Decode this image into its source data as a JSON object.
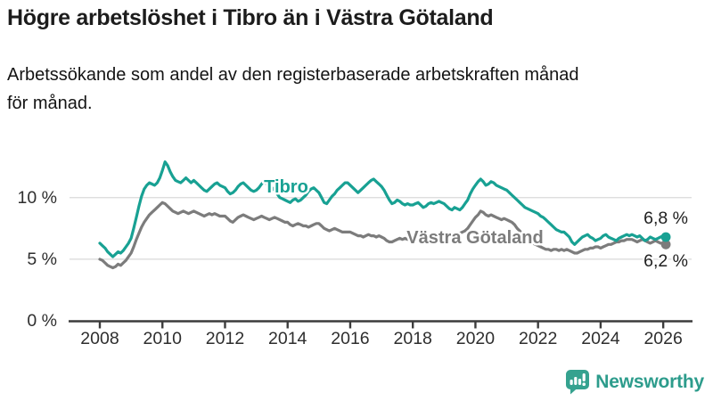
{
  "header": {
    "title": "Högre arbetslöshet i Tibro än i Västra Götaland",
    "subtitle_line1": "Arbetssökande som andel av den registerbaserade arbetskraften månad",
    "subtitle_line2": "för månad."
  },
  "chart_data": {
    "type": "line",
    "unit": "% av registerbaserad arbetskraft",
    "frequency": "monthly",
    "period_start": "2008-01",
    "period_end": "2026-02",
    "grid": "horizontal",
    "y_axis": {
      "ticks": [
        0,
        5,
        10
      ],
      "tick_labels": [
        "0 %",
        "5 %",
        "10 %"
      ],
      "ylim": [
        0,
        13.5
      ]
    },
    "x_axis": {
      "tick_years": [
        2008,
        2010,
        2012,
        2014,
        2016,
        2018,
        2020,
        2022,
        2024,
        2026
      ],
      "xlim_years": [
        2007.0,
        2026.9
      ]
    },
    "series": [
      {
        "name": "Västra Götaland",
        "color": "#7c7c7c",
        "end_label": "6,2 %",
        "last_value": 6.2,
        "values": [
          5.0,
          4.9,
          4.7,
          4.5,
          4.4,
          4.3,
          4.4,
          4.6,
          4.5,
          4.7,
          4.9,
          5.2,
          5.5,
          6.0,
          6.6,
          7.1,
          7.6,
          8.0,
          8.3,
          8.6,
          8.8,
          9.0,
          9.2,
          9.4,
          9.6,
          9.5,
          9.3,
          9.1,
          8.9,
          8.8,
          8.7,
          8.8,
          8.9,
          8.8,
          8.7,
          8.8,
          8.9,
          8.8,
          8.7,
          8.6,
          8.5,
          8.6,
          8.7,
          8.6,
          8.7,
          8.6,
          8.5,
          8.5,
          8.5,
          8.3,
          8.1,
          8.0,
          8.2,
          8.4,
          8.5,
          8.6,
          8.5,
          8.4,
          8.3,
          8.2,
          8.3,
          8.4,
          8.5,
          8.4,
          8.3,
          8.2,
          8.3,
          8.4,
          8.3,
          8.2,
          8.1,
          8.0,
          8.0,
          7.8,
          7.7,
          7.8,
          7.9,
          7.8,
          7.7,
          7.7,
          7.6,
          7.7,
          7.8,
          7.9,
          7.9,
          7.7,
          7.5,
          7.4,
          7.3,
          7.4,
          7.5,
          7.4,
          7.3,
          7.2,
          7.2,
          7.2,
          7.2,
          7.1,
          7.0,
          6.9,
          6.9,
          6.8,
          6.9,
          7.0,
          6.9,
          6.9,
          6.8,
          6.9,
          6.8,
          6.7,
          6.5,
          6.4,
          6.4,
          6.5,
          6.6,
          6.7,
          6.6,
          6.7,
          6.6,
          6.7,
          6.7,
          6.6,
          6.6,
          6.7,
          6.8,
          6.7,
          6.6,
          6.7,
          6.8,
          6.7,
          6.8,
          6.9,
          6.9,
          6.8,
          6.8,
          6.9,
          7.0,
          7.0,
          7.1,
          7.2,
          7.3,
          7.5,
          7.8,
          8.1,
          8.4,
          8.6,
          8.9,
          8.8,
          8.6,
          8.5,
          8.6,
          8.5,
          8.4,
          8.3,
          8.2,
          8.3,
          8.2,
          8.1,
          8.0,
          7.8,
          7.5,
          7.3,
          7.0,
          6.8,
          6.6,
          6.4,
          6.3,
          6.2,
          6.1,
          6.0,
          5.9,
          5.8,
          5.8,
          5.7,
          5.8,
          5.8,
          5.7,
          5.8,
          5.7,
          5.8,
          5.7,
          5.6,
          5.5,
          5.5,
          5.6,
          5.7,
          5.8,
          5.8,
          5.9,
          5.9,
          6.0,
          6.0,
          5.9,
          6.0,
          6.1,
          6.2,
          6.2,
          6.3,
          6.4,
          6.4,
          6.5,
          6.5,
          6.6,
          6.6,
          6.6,
          6.5,
          6.4,
          6.5,
          6.6,
          6.5,
          6.4,
          6.3,
          6.4,
          6.5,
          6.4,
          6.3,
          6.3,
          6.2
        ]
      },
      {
        "name": "Tibro",
        "color": "#18a193",
        "end_label": "6,8 %",
        "last_value": 6.8,
        "values": [
          6.3,
          6.1,
          5.9,
          5.6,
          5.4,
          5.2,
          5.4,
          5.6,
          5.5,
          5.7,
          6.0,
          6.3,
          6.7,
          7.5,
          8.4,
          9.3,
          10.1,
          10.7,
          11.0,
          11.2,
          11.1,
          11.0,
          11.2,
          11.6,
          12.2,
          12.9,
          12.6,
          12.1,
          11.7,
          11.4,
          11.3,
          11.2,
          11.4,
          11.6,
          11.4,
          11.2,
          11.4,
          11.2,
          11.0,
          10.8,
          10.6,
          10.5,
          10.7,
          10.9,
          11.1,
          11.2,
          11.0,
          10.9,
          10.8,
          10.5,
          10.3,
          10.4,
          10.6,
          10.9,
          11.1,
          11.2,
          11.0,
          10.8,
          10.6,
          10.5,
          10.6,
          10.8,
          11.1,
          11.3,
          11.1,
          10.9,
          10.8,
          10.6,
          10.3,
          10.0,
          9.9,
          9.8,
          9.7,
          9.6,
          9.8,
          9.9,
          9.7,
          9.8,
          10.0,
          10.2,
          10.5,
          10.7,
          10.8,
          10.6,
          10.4,
          10.0,
          9.6,
          9.5,
          9.8,
          10.1,
          10.3,
          10.6,
          10.8,
          11.0,
          11.2,
          11.2,
          11.0,
          10.8,
          10.6,
          10.4,
          10.6,
          10.8,
          11.0,
          11.2,
          11.4,
          11.5,
          11.3,
          11.1,
          10.9,
          10.6,
          10.2,
          9.8,
          9.5,
          9.6,
          9.8,
          9.7,
          9.5,
          9.4,
          9.5,
          9.4,
          9.4,
          9.5,
          9.6,
          9.4,
          9.2,
          9.3,
          9.5,
          9.6,
          9.5,
          9.6,
          9.7,
          9.6,
          9.5,
          9.3,
          9.1,
          9.0,
          9.2,
          9.1,
          9.0,
          9.2,
          9.5,
          9.8,
          10.3,
          10.7,
          11.0,
          11.3,
          11.5,
          11.3,
          11.0,
          11.1,
          11.3,
          11.2,
          11.0,
          10.9,
          10.8,
          10.7,
          10.6,
          10.4,
          10.2,
          10.0,
          9.8,
          9.6,
          9.4,
          9.2,
          9.1,
          9.0,
          8.9,
          8.8,
          8.7,
          8.5,
          8.4,
          8.2,
          8.0,
          7.8,
          7.6,
          7.4,
          7.3,
          7.2,
          7.2,
          7.0,
          6.8,
          6.4,
          6.2,
          6.4,
          6.6,
          6.8,
          6.9,
          7.0,
          6.8,
          6.7,
          6.5,
          6.6,
          6.7,
          6.9,
          7.0,
          6.8,
          6.7,
          6.6,
          6.5,
          6.7,
          6.8,
          6.9,
          7.0,
          6.9,
          7.0,
          6.9,
          6.8,
          6.9,
          6.7,
          6.5,
          6.6,
          6.8,
          6.7,
          6.6,
          6.7,
          6.8,
          6.9,
          6.8
        ]
      }
    ],
    "title": "Högre arbetslöshet i Tibro än i Västra Götaland",
    "xlabel": "",
    "ylabel": ""
  },
  "branding": {
    "logo_text": "Newsworthy",
    "logo_color": "#2d9c8c"
  },
  "colors": {
    "tibro": "#18a193",
    "vastra_gotaland": "#7c7c7c",
    "gridline": "#d9d9d9",
    "axis": "#3c3c3c"
  }
}
